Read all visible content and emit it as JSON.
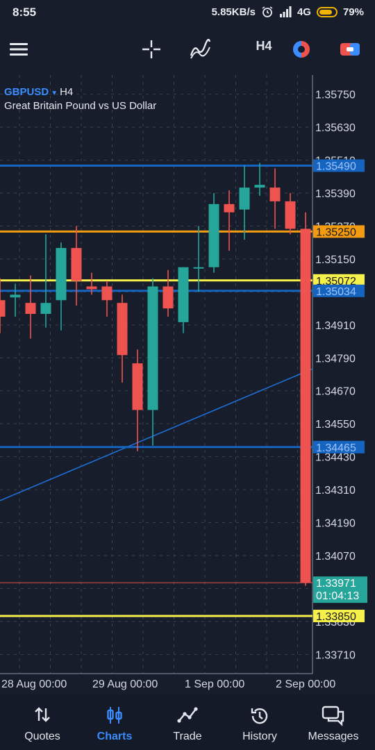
{
  "status_bar": {
    "time": "8:55",
    "speed": "5.85KB/s",
    "network": "4G",
    "battery": "79%"
  },
  "toolbar": {
    "timeframe": "H4",
    "icons": [
      "menu-icon",
      "crosshair-icon",
      "indicators-icon",
      "timeframe",
      "color-theme-icon",
      "trade-toggle-icon"
    ]
  },
  "symbol": {
    "name": "GBPUSD",
    "timeframe": "H4",
    "description": "Great Britain Pound vs US Dollar"
  },
  "chart_data": {
    "type": "candlestick",
    "ylim": [
      1.3364,
      1.3582
    ],
    "yticks": [
      "1.35750",
      "1.35630",
      "1.35510",
      "1.35390",
      "1.35270",
      "1.35150",
      "1.35030",
      "1.34910",
      "1.34790",
      "1.34670",
      "1.34550",
      "1.34430",
      "1.34310",
      "1.34190",
      "1.34070",
      "1.33950",
      "1.33830",
      "1.33710"
    ],
    "xticks": [
      "28 Aug 00:00",
      "29 Aug 00:00",
      "1 Sep 00:00",
      "2 Sep 00:00"
    ],
    "candles": [
      {
        "o": 1.35,
        "h": 1.3508,
        "l": 1.3488,
        "c": 1.3494
      },
      {
        "o": 1.3501,
        "h": 1.3506,
        "l": 1.3494,
        "c": 1.3502
      },
      {
        "o": 1.3499,
        "h": 1.3509,
        "l": 1.3486,
        "c": 1.3495
      },
      {
        "o": 1.3495,
        "h": 1.3524,
        "l": 1.349,
        "c": 1.3499
      },
      {
        "o": 1.35,
        "h": 1.3521,
        "l": 1.3489,
        "c": 1.3519
      },
      {
        "o": 1.3519,
        "h": 1.3527,
        "l": 1.3498,
        "c": 1.3507
      },
      {
        "o": 1.3505,
        "h": 1.351,
        "l": 1.3502,
        "c": 1.3504
      },
      {
        "o": 1.3505,
        "h": 1.3507,
        "l": 1.3494,
        "c": 1.35
      },
      {
        "o": 1.3499,
        "h": 1.3502,
        "l": 1.347,
        "c": 1.348
      },
      {
        "o": 1.3477,
        "h": 1.3482,
        "l": 1.3445,
        "c": 1.346
      },
      {
        "o": 1.346,
        "h": 1.3508,
        "l": 1.3447,
        "c": 1.3505
      },
      {
        "o": 1.3505,
        "h": 1.3511,
        "l": 1.3494,
        "c": 1.3497
      },
      {
        "o": 1.3492,
        "h": 1.3512,
        "l": 1.3488,
        "c": 1.3512
      },
      {
        "o": 1.3512,
        "h": 1.3527,
        "l": 1.3503,
        "c": 1.3512
      },
      {
        "o": 1.3512,
        "h": 1.3539,
        "l": 1.351,
        "c": 1.3535
      },
      {
        "o": 1.3535,
        "h": 1.354,
        "l": 1.3518,
        "c": 1.3532
      },
      {
        "o": 1.3533,
        "h": 1.3549,
        "l": 1.3522,
        "c": 1.3541
      },
      {
        "o": 1.3541,
        "h": 1.355,
        "l": 1.3538,
        "c": 1.3542
      },
      {
        "o": 1.3541,
        "h": 1.3548,
        "l": 1.3526,
        "c": 1.3536
      },
      {
        "o": 1.3536,
        "h": 1.3539,
        "l": 1.3524,
        "c": 1.3526
      },
      {
        "o": 1.3526,
        "h": 1.3532,
        "l": 1.3396,
        "c": 1.3397
      }
    ],
    "trendline": [
      [
        0,
        1.3427
      ],
      [
        21,
        1.3475
      ]
    ],
    "hlines": [
      {
        "price": 1.3549,
        "label": "1.35490",
        "color": "#1565c0",
        "text_color": "#9fc3ff"
      },
      {
        "price": 1.3525,
        "label": "1.35250",
        "color": "#f39c12",
        "text_color": "#1a1a1a"
      },
      {
        "price": 1.35072,
        "label": "1.35072",
        "color": "#f5f04a",
        "text_color": "#1a1a1a"
      },
      {
        "price": 1.35034,
        "label": "1.35034",
        "color": "#1565c0",
        "text_color": "#9fc3ff"
      },
      {
        "price": 1.34465,
        "label": "1.34465",
        "color": "#1565c0",
        "text_color": "#9fc3ff"
      },
      {
        "price": 1.3385,
        "label": "1.33850",
        "color": "#f5f04a",
        "text_color": "#1a1a1a"
      }
    ],
    "current_price": {
      "price": 1.33971,
      "label": "1.33971",
      "countdown": "01:04:13",
      "color": "#26a69a"
    },
    "colors": {
      "bull": "#26a69a",
      "bear": "#ef5350",
      "grid": "#3a4252",
      "axis_text": "#d6dae2",
      "trend": "#1e6fd6"
    }
  },
  "bottom_nav": [
    {
      "label": "Quotes",
      "icon": "quotes-icon",
      "active": false
    },
    {
      "label": "Charts",
      "icon": "charts-icon",
      "active": true
    },
    {
      "label": "Trade",
      "icon": "trade-icon",
      "active": false
    },
    {
      "label": "History",
      "icon": "history-icon",
      "active": false
    },
    {
      "label": "Messages",
      "icon": "messages-icon",
      "active": false
    }
  ]
}
